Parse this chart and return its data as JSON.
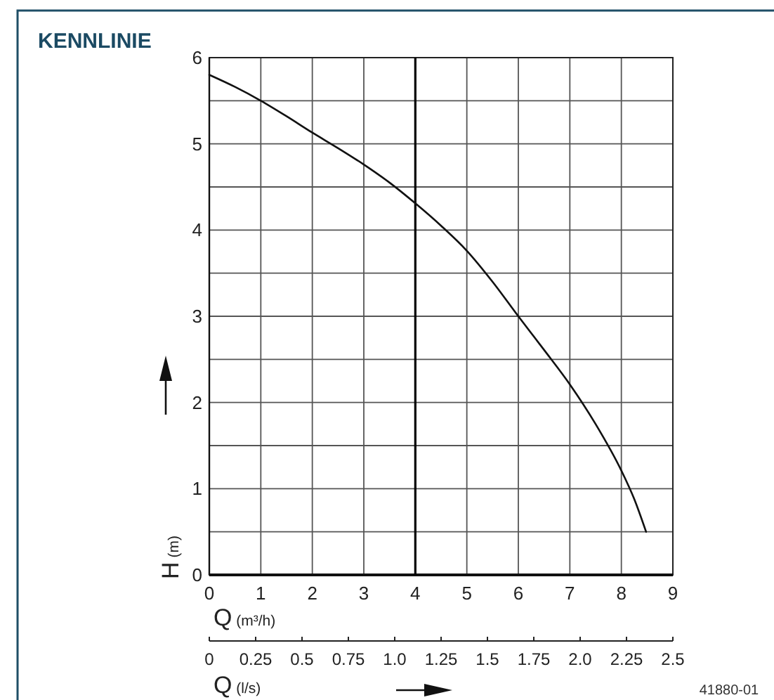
{
  "chart_data": {
    "type": "line",
    "title": "KENNLINIE",
    "xlabel": "Q (m³/h)",
    "ylabel": "H (m)",
    "x2label": "Q (l/s)",
    "annotations": [
      "41880-01"
    ],
    "x": [
      0,
      0.5,
      1,
      1.5,
      2,
      2.5,
      3,
      3.5,
      4,
      4.5,
      5,
      5.5,
      6,
      6.5,
      7,
      7.5,
      8,
      8.25,
      8.48
    ],
    "series": [
      {
        "color": "#111111",
        "values": [
          5.8,
          5.66,
          5.5,
          5.32,
          5.13,
          4.95,
          4.76,
          4.55,
          4.31,
          4.05,
          3.76,
          3.4,
          3.0,
          2.61,
          2.21,
          1.75,
          1.21,
          0.88,
          0.5
        ]
      }
    ],
    "xlim": [
      0,
      9
    ],
    "xticks": [
      0,
      1,
      2,
      3,
      4,
      5,
      6,
      7,
      8,
      9
    ],
    "ylim": [
      0,
      6
    ],
    "yticks": [
      0,
      {
        "value": 0.5,
        "label": null
      },
      1,
      {
        "value": 1.5,
        "label": null
      },
      2,
      {
        "value": 2.5,
        "label": null
      },
      3,
      {
        "value": 3.5,
        "label": null
      },
      4,
      {
        "value": 4.5,
        "label": null
      },
      5,
      {
        "value": 5.5,
        "label": null
      },
      6
    ],
    "x2lim": [
      0,
      2.5
    ],
    "x2ticks": [
      0,
      0.25,
      0.5,
      0.75,
      {
        "value": 1,
        "label": "1.0"
      },
      1.25,
      1.5,
      1.75,
      {
        "value": 2,
        "label": "2.0"
      },
      2.25,
      2.5
    ],
    "grid": true,
    "ref_lines": [
      {
        "axis": "x",
        "value": 4,
        "color": "#000000"
      }
    ]
  }
}
